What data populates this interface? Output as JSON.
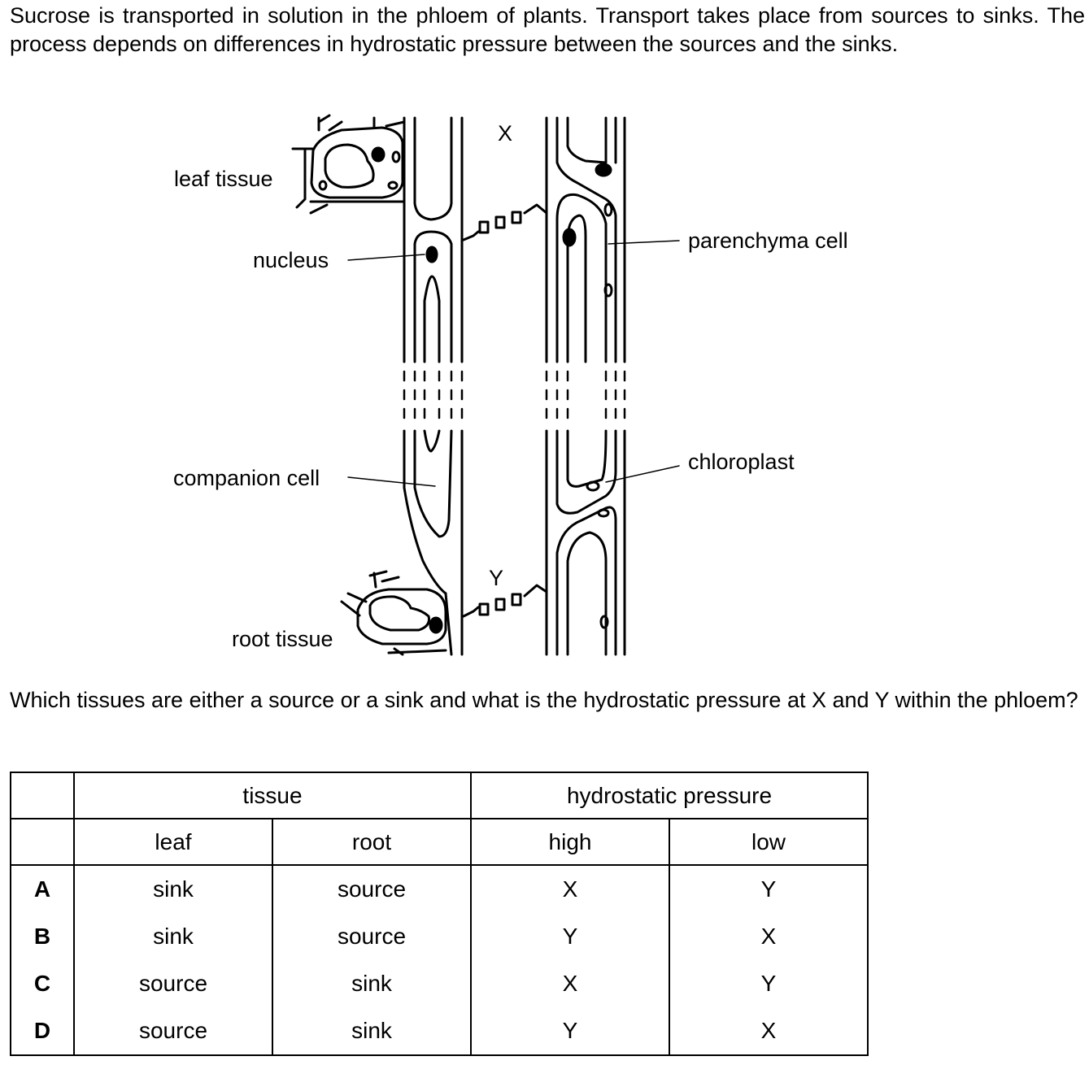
{
  "intro": "Sucrose is transported in solution in the phloem of plants. Transport takes place from sources to sinks. The process depends on differences in hydrostatic pressure between the sources and the sinks.",
  "diagram": {
    "labels": {
      "leaf_tissue": "leaf tissue",
      "nucleus": "nucleus",
      "companion_cell": "companion cell",
      "root_tissue": "root tissue",
      "parenchyma_cell": "parenchyma cell",
      "chloroplast": "chloroplast",
      "x": "X",
      "y": "Y"
    }
  },
  "question": "Which tissues are either a source or a sink and what is the hydrostatic pressure at X and Y within the phloem?",
  "table": {
    "group_headers": {
      "tissue": "tissue",
      "pressure": "hydrostatic pressure"
    },
    "columns": {
      "leaf": "leaf",
      "root": "root",
      "high": "high",
      "low": "low"
    },
    "rows": [
      {
        "letter": "A",
        "leaf": "sink",
        "root": "source",
        "high": "X",
        "low": "Y"
      },
      {
        "letter": "B",
        "leaf": "sink",
        "root": "source",
        "high": "Y",
        "low": "X"
      },
      {
        "letter": "C",
        "leaf": "source",
        "root": "sink",
        "high": "X",
        "low": "Y"
      },
      {
        "letter": "D",
        "leaf": "source",
        "root": "sink",
        "high": "Y",
        "low": "X"
      }
    ]
  }
}
